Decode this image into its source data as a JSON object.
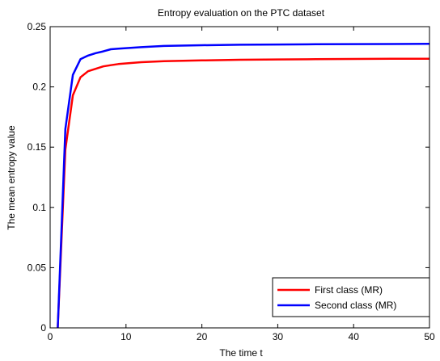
{
  "chart_data": {
    "type": "line",
    "title": "Entropy evaluation on the PTC dataset",
    "xlabel": "The time t",
    "ylabel": "The mean entropy value",
    "xlim": [
      0,
      50
    ],
    "ylim": [
      0,
      0.25
    ],
    "xticks": [
      0,
      10,
      20,
      30,
      40,
      50
    ],
    "yticks": [
      0,
      0.05,
      0.1,
      0.15,
      0.2,
      0.25
    ],
    "xtick_labels": [
      "0",
      "10",
      "20",
      "30",
      "40",
      "50"
    ],
    "ytick_labels": [
      "0",
      "0.05",
      "0.1",
      "0.15",
      "0.2",
      "0.25"
    ],
    "grid": false,
    "legend_position": "bottom-right",
    "series": [
      {
        "name": "First class (MR)",
        "color": "#ff0000",
        "x": [
          1,
          2,
          3,
          4,
          5,
          6,
          7,
          8,
          9,
          10,
          12,
          15,
          20,
          25,
          30,
          35,
          40,
          45,
          50
        ],
        "values": [
          0,
          0.148,
          0.193,
          0.208,
          0.213,
          0.215,
          0.217,
          0.218,
          0.219,
          0.2195,
          0.2205,
          0.2213,
          0.222,
          0.2225,
          0.2228,
          0.223,
          0.2232,
          0.2233,
          0.2234
        ]
      },
      {
        "name": "Second class (MR)",
        "color": "#0000ff",
        "x": [
          1,
          2,
          3,
          4,
          5,
          6,
          7,
          8,
          9,
          10,
          12,
          15,
          20,
          25,
          30,
          35,
          40,
          45,
          50
        ],
        "values": [
          0,
          0.165,
          0.21,
          0.223,
          0.226,
          0.228,
          0.2295,
          0.2312,
          0.2318,
          0.2322,
          0.233,
          0.234,
          0.2346,
          0.235,
          0.2352,
          0.2354,
          0.2355,
          0.2356,
          0.2357
        ]
      }
    ]
  }
}
